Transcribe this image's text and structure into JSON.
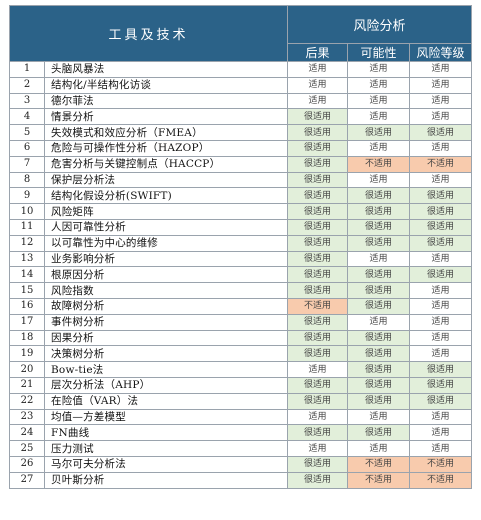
{
  "header": {
    "tools_col": "工具及技术",
    "risk_group": "风险分析",
    "sub_cols": [
      "后果",
      "可能性",
      "风险等级"
    ]
  },
  "colors": {
    "header_bg": "#2b6288",
    "very_applicable_bg": "#e2efda",
    "not_applicable_bg": "#f8cbad",
    "applicable_bg": "#ffffff"
  },
  "rows": [
    {
      "n": "1",
      "name": "头脑风暴法",
      "c": "适用",
      "p": "适用",
      "r": "适用"
    },
    {
      "n": "2",
      "name": "结构化/半结构化访谈",
      "c": "适用",
      "p": "适用",
      "r": "适用"
    },
    {
      "n": "3",
      "name": "德尔菲法",
      "c": "适用",
      "p": "适用",
      "r": "适用"
    },
    {
      "n": "4",
      "name": "情景分析",
      "c": "很适用",
      "p": "适用",
      "r": "适用"
    },
    {
      "n": "5",
      "name": "失效模式和效应分析（FMEA）",
      "c": "很适用",
      "p": "很适用",
      "r": "很适用"
    },
    {
      "n": "6",
      "name": "危险与可操作性分析（HAZOP）",
      "c": "很适用",
      "p": "适用",
      "r": "适用"
    },
    {
      "n": "7",
      "name": "危害分析与关键控制点（HACCP）",
      "c": "很适用",
      "p": "不适用",
      "r": "不适用"
    },
    {
      "n": "8",
      "name": "保护层分析法",
      "c": "很适用",
      "p": "适用",
      "r": "适用"
    },
    {
      "n": "9",
      "name": "结构化假设分析(SWIFT)",
      "c": "很适用",
      "p": "很适用",
      "r": "很适用"
    },
    {
      "n": "10",
      "name": "风险矩阵",
      "c": "很适用",
      "p": "很适用",
      "r": "很适用"
    },
    {
      "n": "11",
      "name": "人因可靠性分析",
      "c": "很适用",
      "p": "很适用",
      "r": "很适用"
    },
    {
      "n": "12",
      "name": "以可靠性为中心的维修",
      "c": "很适用",
      "p": "很适用",
      "r": "很适用"
    },
    {
      "n": "13",
      "name": "业务影响分析",
      "c": "很适用",
      "p": "适用",
      "r": "适用"
    },
    {
      "n": "14",
      "name": "根原因分析",
      "c": "很适用",
      "p": "很适用",
      "r": "很适用"
    },
    {
      "n": "15",
      "name": "风险指数",
      "c": "很适用",
      "p": "很适用",
      "r": "适用"
    },
    {
      "n": "16",
      "name": "故障树分析",
      "c": "不适用",
      "p": "很适用",
      "r": "适用"
    },
    {
      "n": "17",
      "name": "事件树分析",
      "c": "很适用",
      "p": "适用",
      "r": "适用"
    },
    {
      "n": "18",
      "name": "因果分析",
      "c": "很适用",
      "p": "很适用",
      "r": "适用"
    },
    {
      "n": "19",
      "name": "决策树分析",
      "c": "很适用",
      "p": "很适用",
      "r": "适用"
    },
    {
      "n": "20",
      "name": "Bow-tie法",
      "c": "适用",
      "p": "很适用",
      "r": "很适用"
    },
    {
      "n": "21",
      "name": "层次分析法（AHP）",
      "c": "很适用",
      "p": "很适用",
      "r": "很适用"
    },
    {
      "n": "22",
      "name": "在险值（VAR）法",
      "c": "很适用",
      "p": "很适用",
      "r": "很适用"
    },
    {
      "n": "23",
      "name": "均值—方差模型",
      "c": "适用",
      "p": "适用",
      "r": "适用"
    },
    {
      "n": "24",
      "name": "FN曲线",
      "c": "很适用",
      "p": "很适用",
      "r": "适用"
    },
    {
      "n": "25",
      "name": "压力测试",
      "c": "适用",
      "p": "适用",
      "r": "适用"
    },
    {
      "n": "26",
      "name": "马尔可夫分析法",
      "c": "很适用",
      "p": "不适用",
      "r": "不适用"
    },
    {
      "n": "27",
      "name": "贝叶斯分析",
      "c": "很适用",
      "p": "不适用",
      "r": "不适用"
    }
  ]
}
